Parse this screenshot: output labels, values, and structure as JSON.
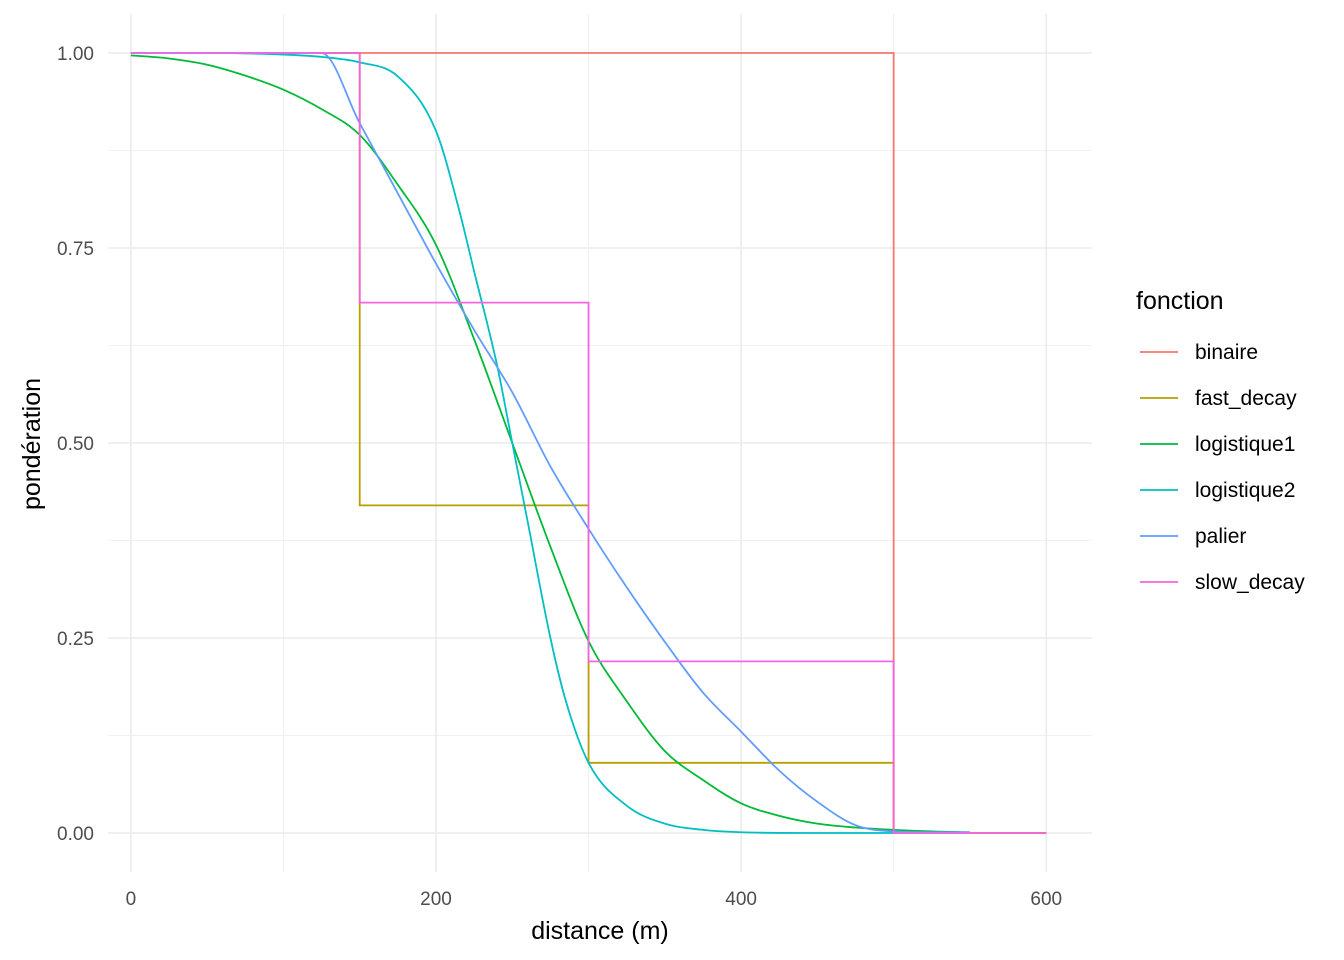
{
  "chart_data": {
    "type": "line",
    "xlabel": "distance (m)",
    "ylabel": "pondération",
    "xlim": [
      -15,
      630
    ],
    "ylim": [
      -0.05,
      1.05
    ],
    "x_ticks": [
      0,
      200,
      400,
      600
    ],
    "x_tick_labels": [
      "0",
      "200",
      "400",
      "600"
    ],
    "y_ticks": [
      0,
      0.25,
      0.5,
      0.75,
      1.0
    ],
    "y_tick_labels": [
      "0.00",
      "0.25",
      "0.50",
      "0.75",
      "1.00"
    ],
    "grid": true,
    "legend": {
      "title": "fonction",
      "position": "right"
    },
    "series": [
      {
        "name": "binaire",
        "color": "#F8766D",
        "x": [
          0,
          500,
          500,
          600
        ],
        "y": [
          1,
          1,
          0,
          0
        ]
      },
      {
        "name": "fast_decay",
        "color": "#B79F00",
        "x": [
          0,
          150,
          150,
          300,
          300,
          500,
          500,
          600
        ],
        "y": [
          1,
          1,
          0.42,
          0.42,
          0.09,
          0.09,
          0,
          0
        ]
      },
      {
        "name": "logistique1",
        "color": "#00BA38",
        "x": [
          0,
          25,
          50,
          75,
          100,
          125,
          150,
          175,
          200,
          225,
          250,
          275,
          300,
          325,
          350,
          375,
          400,
          425,
          450,
          475,
          500,
          525,
          550
        ],
        "y": [
          0.997,
          0.993,
          0.985,
          0.971,
          0.953,
          0.928,
          0.895,
          0.831,
          0.754,
          0.633,
          0.5,
          0.367,
          0.246,
          0.169,
          0.105,
          0.068,
          0.038,
          0.022,
          0.012,
          0.007,
          0.004,
          0.002,
          0.001
        ]
      },
      {
        "name": "logistique2",
        "color": "#00BFC4",
        "x": [
          0,
          50,
          100,
          125,
          150,
          175,
          200,
          215,
          225,
          240,
          250,
          260,
          275,
          285,
          300,
          325,
          350,
          375,
          400,
          450,
          500,
          550
        ],
        "y": [
          1.0,
          1.0,
          0.998,
          0.995,
          0.988,
          0.97,
          0.9,
          0.8,
          0.72,
          0.6,
          0.5,
          0.4,
          0.25,
          0.17,
          0.09,
          0.035,
          0.012,
          0.004,
          0.001,
          0.0,
          0.0,
          0.0
        ]
      },
      {
        "name": "palier",
        "color": "#619CFF",
        "x": [
          0,
          125,
          150,
          175,
          200,
          225,
          250,
          275,
          300,
          325,
          350,
          375,
          400,
          425,
          450,
          475,
          500,
          525,
          550
        ],
        "y": [
          1.0,
          1.0,
          0.91,
          0.82,
          0.73,
          0.645,
          0.565,
          0.47,
          0.39,
          0.315,
          0.245,
          0.18,
          0.13,
          0.08,
          0.04,
          0.01,
          0.002,
          0.001,
          0.001
        ]
      },
      {
        "name": "slow_decay",
        "color": "#F564E3",
        "x": [
          0,
          150,
          150,
          300,
          300,
          500,
          500,
          600
        ],
        "y": [
          1,
          1,
          0.68,
          0.68,
          0.22,
          0.22,
          0,
          0
        ]
      }
    ]
  }
}
